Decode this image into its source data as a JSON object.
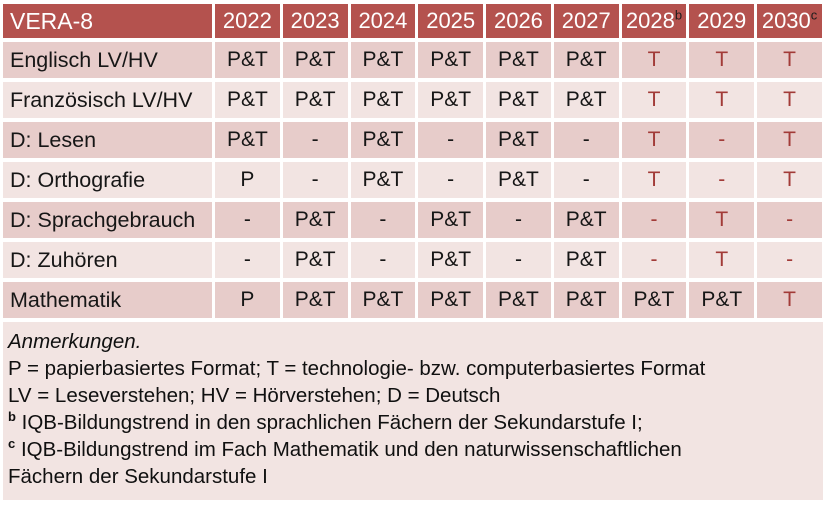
{
  "colors": {
    "header_bg": "#B4524E",
    "band_dark": "#E7CCCA",
    "band_light": "#F2E4E2",
    "accent_text": "#A23B38",
    "grid_white": "#FFFFFF"
  },
  "table": {
    "title": "VERA-8",
    "columns": [
      {
        "label": "2022",
        "sup": ""
      },
      {
        "label": "2023",
        "sup": ""
      },
      {
        "label": "2024",
        "sup": ""
      },
      {
        "label": "2025",
        "sup": ""
      },
      {
        "label": "2026",
        "sup": ""
      },
      {
        "label": "2027",
        "sup": ""
      },
      {
        "label": "2028",
        "sup": "b"
      },
      {
        "label": "2029",
        "sup": ""
      },
      {
        "label": "2030",
        "sup": "c"
      }
    ],
    "rows": [
      {
        "label": "Englisch LV/HV",
        "values": [
          "P&T",
          "P&T",
          "P&T",
          "P&T",
          "P&T",
          "P&T",
          "T",
          "T",
          "T"
        ],
        "red": [
          0,
          0,
          0,
          0,
          0,
          0,
          1,
          1,
          1
        ]
      },
      {
        "label": "Französisch LV/HV",
        "values": [
          "P&T",
          "P&T",
          "P&T",
          "P&T",
          "P&T",
          "P&T",
          "T",
          "T",
          "T"
        ],
        "red": [
          0,
          0,
          0,
          0,
          0,
          0,
          1,
          1,
          1
        ]
      },
      {
        "label": "D: Lesen",
        "values": [
          "P&T",
          "-",
          "P&T",
          "-",
          "P&T",
          "-",
          "T",
          "-",
          "T"
        ],
        "red": [
          0,
          0,
          0,
          0,
          0,
          0,
          1,
          1,
          1
        ]
      },
      {
        "label": "D: Orthografie",
        "values": [
          "P",
          "-",
          "P&T",
          "-",
          "P&T",
          "-",
          "T",
          "-",
          "T"
        ],
        "red": [
          0,
          0,
          0,
          0,
          0,
          0,
          1,
          1,
          1
        ]
      },
      {
        "label": "D: Sprachgebrauch",
        "values": [
          "-",
          "P&T",
          "-",
          "P&T",
          "-",
          "P&T",
          "-",
          "T",
          "-"
        ],
        "red": [
          0,
          0,
          0,
          0,
          0,
          0,
          1,
          1,
          1
        ]
      },
      {
        "label": "D: Zuhören",
        "values": [
          "-",
          "P&T",
          "-",
          "P&T",
          "-",
          "P&T",
          "-",
          "T",
          "-"
        ],
        "red": [
          0,
          0,
          0,
          0,
          0,
          0,
          1,
          1,
          1
        ]
      },
      {
        "label": "Mathematik",
        "values": [
          "P",
          "P&T",
          "P&T",
          "P&T",
          "P&T",
          "P&T",
          "P&T",
          "P&T",
          "T"
        ],
        "red": [
          0,
          0,
          0,
          0,
          0,
          0,
          0,
          0,
          1
        ]
      }
    ]
  },
  "notes": {
    "lines": [
      {
        "text": "Anmerkungen.",
        "italic": true,
        "sup": ""
      },
      {
        "text": "P = papierbasiertes Format; T = technologie- bzw. computerbasiertes Format",
        "italic": false,
        "sup": ""
      },
      {
        "text": "LV = Leseverstehen; HV = Hörverstehen; D = Deutsch",
        "italic": false,
        "sup": ""
      },
      {
        "text": "IQB-Bildungstrend in den sprachlichen Fächern der Sekundarstufe I;",
        "italic": false,
        "sup": "b"
      },
      {
        "text": "IQB-Bildungstrend im Fach Mathematik und den naturwissenschaftlichen",
        "italic": false,
        "sup": "c"
      },
      {
        "text": "Fächern der Sekundarstufe I",
        "italic": false,
        "sup": ""
      }
    ]
  }
}
